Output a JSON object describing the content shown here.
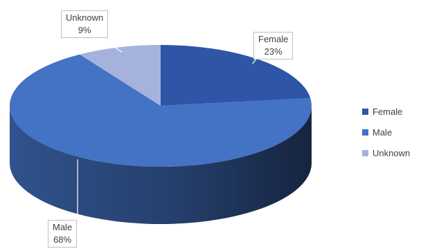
{
  "chart_data": {
    "type": "pie",
    "title": "",
    "slices": [
      {
        "label": "Female",
        "value": 23,
        "display": "23%",
        "color": "#2f55a7"
      },
      {
        "label": "Male",
        "value": 68,
        "display": "68%",
        "color": "#4472c4"
      },
      {
        "label": "Unknown",
        "value": 9,
        "display": "9%",
        "color": "#a5b3dc"
      }
    ],
    "legend": {
      "position": "right",
      "items": [
        "Female",
        "Male",
        "Unknown"
      ]
    },
    "style": "3d"
  }
}
